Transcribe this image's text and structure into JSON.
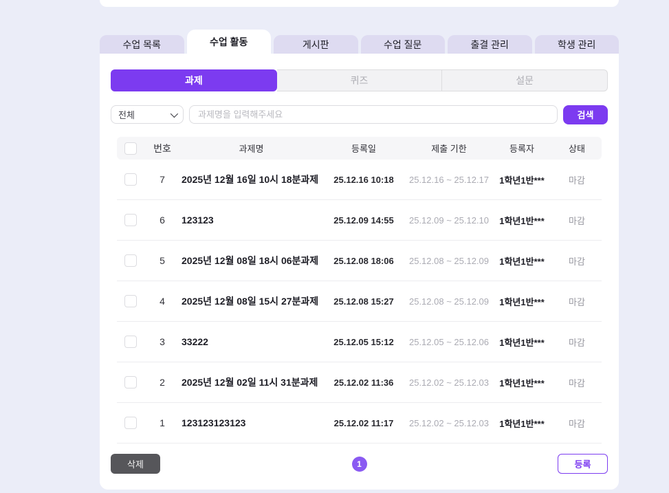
{
  "colors": {
    "page_bg": "#EBEDF8",
    "accent_purple": "#7C3BF0",
    "pagination_purple": "#8A5AF2",
    "inactive_tab_bg": "#DEDBF1",
    "delete_btn_bg": "#56565A"
  },
  "tabs": [
    {
      "label": "수업 목록",
      "active": false
    },
    {
      "label": "수업 활동",
      "active": true
    },
    {
      "label": "게시판",
      "active": false
    },
    {
      "label": "수업 질문",
      "active": false
    },
    {
      "label": "출결 관리",
      "active": false
    },
    {
      "label": "학생 관리",
      "active": false
    }
  ],
  "subtabs": [
    {
      "label": "과제",
      "active": true
    },
    {
      "label": "퀴즈",
      "active": false
    },
    {
      "label": "설문",
      "active": false
    }
  ],
  "filter": {
    "category_value": "전체",
    "search_placeholder": "과제명을 입력해주세요",
    "search_button": "검색"
  },
  "table": {
    "headers": {
      "no": "번호",
      "title": "과제명",
      "created": "등록일",
      "due": "제출 기한",
      "author": "등록자",
      "status": "상태"
    },
    "rows": [
      {
        "no": "7",
        "title": "2025년 12월 16일 10시 18분과제",
        "created": "25.12.16 10:18",
        "due": "25.12.16 ~ 25.12.17",
        "author": "1학년1반***",
        "status": "마감"
      },
      {
        "no": "6",
        "title": "123123",
        "created": "25.12.09 14:55",
        "due": "25.12.09 ~ 25.12.10",
        "author": "1학년1반***",
        "status": "마감"
      },
      {
        "no": "5",
        "title": "2025년 12월 08일 18시 06분과제",
        "created": "25.12.08 18:06",
        "due": "25.12.08 ~ 25.12.09",
        "author": "1학년1반***",
        "status": "마감"
      },
      {
        "no": "4",
        "title": "2025년 12월 08일 15시 27분과제",
        "created": "25.12.08 15:27",
        "due": "25.12.08 ~ 25.12.09",
        "author": "1학년1반***",
        "status": "마감"
      },
      {
        "no": "3",
        "title": "33222",
        "created": "25.12.05 15:12",
        "due": "25.12.05 ~ 25.12.06",
        "author": "1학년1반***",
        "status": "마감"
      },
      {
        "no": "2",
        "title": "2025년 12월 02일 11시 31분과제",
        "created": "25.12.02 11:36",
        "due": "25.12.02 ~ 25.12.03",
        "author": "1학년1반***",
        "status": "마감"
      },
      {
        "no": "1",
        "title": "123123123123",
        "created": "25.12.02 11:17",
        "due": "25.12.02 ~ 25.12.03",
        "author": "1학년1반***",
        "status": "마감"
      }
    ]
  },
  "footer": {
    "delete_button": "삭제",
    "page_number": "1",
    "register_button": "등록"
  }
}
